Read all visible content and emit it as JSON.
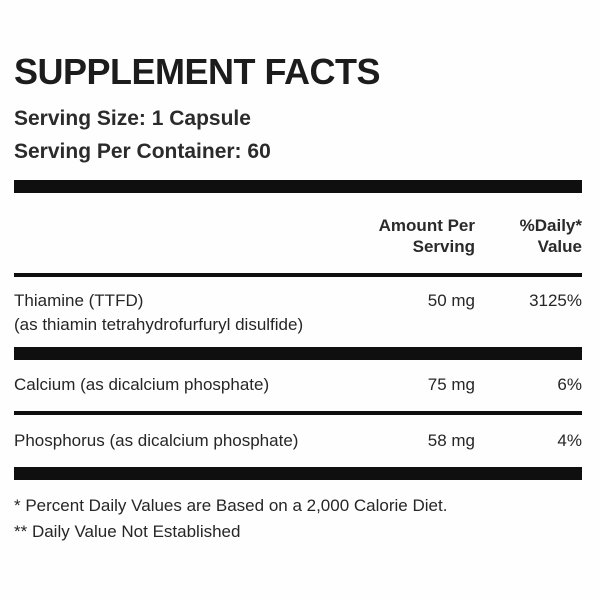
{
  "label": {
    "title": "SUPPLEMENT FACTS",
    "serving_size": "Serving Size: 1 Capsule",
    "servings_per_container": "Serving Per Container: 60",
    "columns": {
      "amount": "Amount Per\nServing",
      "daily_value": "%Daily*\nValue"
    },
    "rows": [
      {
        "name": "Thiamine (TTFD)",
        "detail": "(as thiamin tetrahydrofurfuryl disulfide)",
        "amount": "50 mg",
        "daily_value": "3125%"
      },
      {
        "name": "Calcium (as dicalcium phosphate)",
        "detail": "",
        "amount": "75 mg",
        "daily_value": "6%"
      },
      {
        "name": "Phosphorus (as dicalcium phosphate)",
        "detail": "",
        "amount": "58 mg",
        "daily_value": "4%"
      }
    ],
    "footnotes": [
      "* Percent Daily Values are Based on a 2,000 Calorie Diet.",
      "** Daily Value Not Established"
    ],
    "colors": {
      "text": "#2d2d2d",
      "rule": "#0f0f0f",
      "background": "#ffffff"
    }
  }
}
